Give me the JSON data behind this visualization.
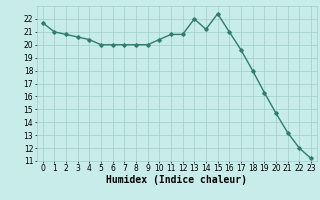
{
  "x": [
    0,
    1,
    2,
    3,
    4,
    5,
    6,
    7,
    8,
    9,
    10,
    11,
    12,
    13,
    14,
    15,
    16,
    17,
    18,
    19,
    20,
    21,
    22,
    23
  ],
  "y": [
    21.7,
    21.0,
    20.8,
    20.6,
    20.4,
    20.0,
    20.0,
    20.0,
    20.0,
    20.0,
    20.4,
    20.8,
    20.8,
    22.0,
    21.2,
    22.4,
    21.0,
    19.6,
    18.0,
    16.3,
    14.7,
    13.2,
    12.0,
    11.2
  ],
  "line_color": "#2e7d6e",
  "marker": "D",
  "marker_size": 1.8,
  "linewidth": 1.0,
  "xlabel": "Humidex (Indice chaleur)",
  "xlim": [
    -0.5,
    23.5
  ],
  "ylim": [
    11,
    23
  ],
  "yticks": [
    11,
    12,
    13,
    14,
    15,
    16,
    17,
    18,
    19,
    20,
    21,
    22
  ],
  "xticks": [
    0,
    1,
    2,
    3,
    4,
    5,
    6,
    7,
    8,
    9,
    10,
    11,
    12,
    13,
    14,
    15,
    16,
    17,
    18,
    19,
    20,
    21,
    22,
    23
  ],
  "bg_color": "#c8ecea",
  "grid_color": "#9ecfcc",
  "tick_fontsize": 5.5,
  "xlabel_fontsize": 7.0
}
